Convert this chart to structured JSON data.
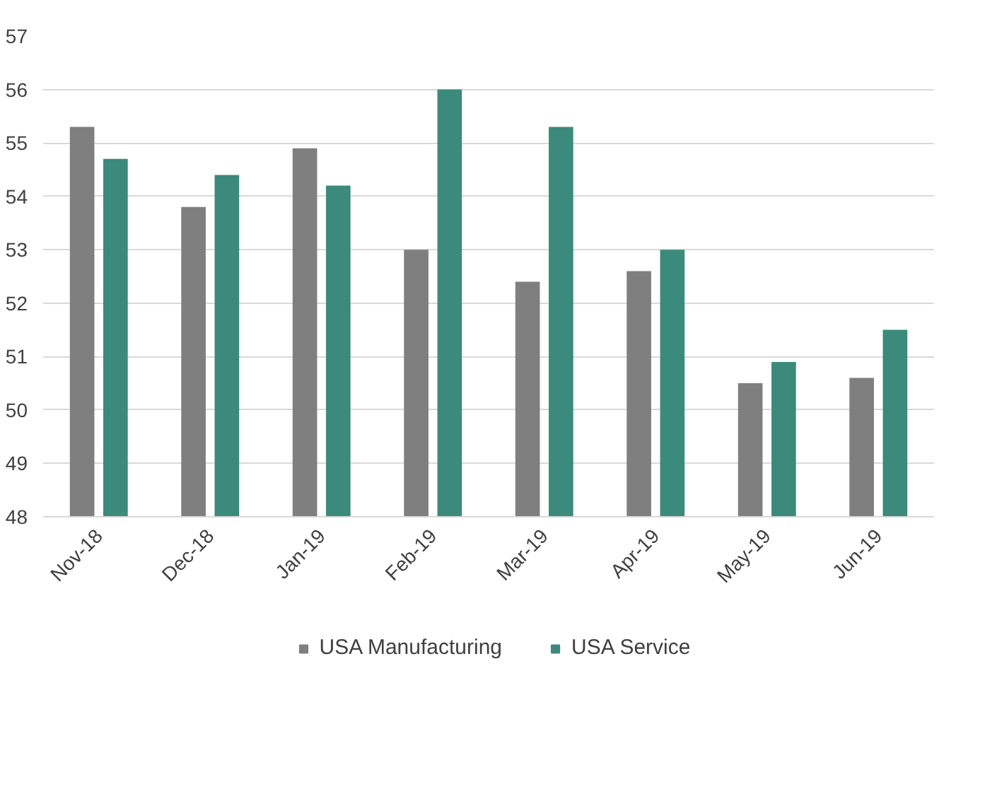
{
  "chart_data": {
    "type": "bar",
    "categories": [
      "Nov-18",
      "Dec-18",
      "Jan-19",
      "Feb-19",
      "Mar-19",
      "Apr-19",
      "May-19",
      "Jun-19"
    ],
    "series": [
      {
        "name": "USA Manufacturing",
        "color": "#7f7f7f",
        "values": [
          55.3,
          53.8,
          54.9,
          53.0,
          52.4,
          52.6,
          50.5,
          50.6
        ]
      },
      {
        "name": "USA Service",
        "color": "#3b8a7b",
        "values": [
          54.7,
          54.4,
          54.2,
          56.0,
          55.3,
          53.0,
          50.9,
          51.5
        ]
      }
    ],
    "ylim": [
      48,
      57
    ],
    "yticks": [
      48,
      49,
      50,
      51,
      52,
      53,
      54,
      55,
      56,
      57
    ],
    "grid": "y",
    "legend": "bottom"
  }
}
